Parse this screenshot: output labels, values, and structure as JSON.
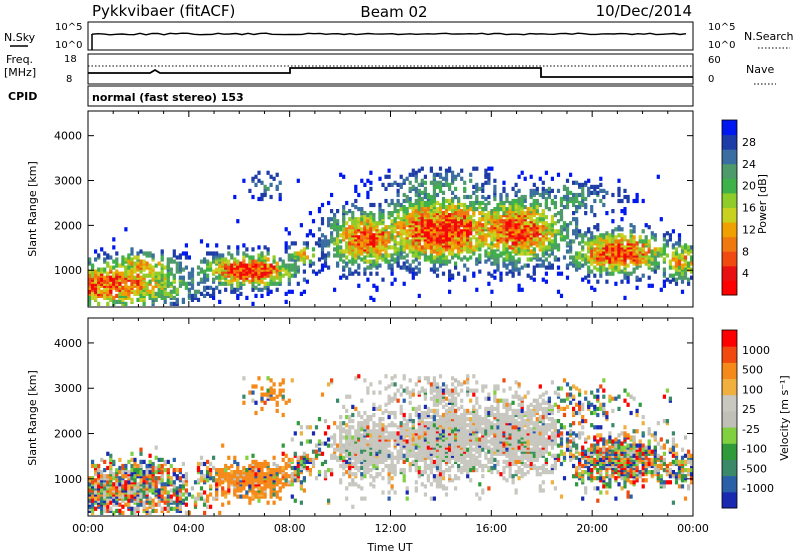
{
  "header": {
    "radar": "Pykkvibaer (fitACF)",
    "beam": "Beam 02",
    "date": "10/Dec/2014"
  },
  "aux_panels": {
    "nsky_label": "N.Sky",
    "nsky_ticks": [
      "10^5",
      "10^0"
    ],
    "nsearch_label": "N.Search",
    "nsearch_ticks": [
      "10^5",
      "10^0"
    ],
    "freq_label": "Freq.",
    "freq_unit": "[MHz]",
    "freq_ticks": [
      "18",
      "8"
    ],
    "nave_label": "Nave",
    "nave_ticks": [
      "60",
      "0"
    ],
    "cpid_label": "CPID",
    "cpid_text": "normal (fast stereo) 153"
  },
  "colors": {
    "power": [
      "#0018f0",
      "#1e3ca8",
      "#3a6ea0",
      "#4e9a6a",
      "#3fb14a",
      "#8fcc2a",
      "#c8d020",
      "#f0a000",
      "#f07810",
      "#f04a10",
      "#e81010",
      "#ff0000"
    ],
    "velocity": [
      "#ff0000",
      "#f04a10",
      "#f58a1a",
      "#f0b040",
      "#c8c8c0",
      "#c0c0b8",
      "#80d040",
      "#2f9a3a",
      "#3a8a6a",
      "#2a60a8",
      "#1a2ab0"
    ]
  },
  "chart_data": [
    {
      "type": "heatmap",
      "name": "power",
      "ylabel": "Slant Range [km]",
      "colorbar_label": "Power [dB]",
      "colorbar_ticks": [
        "28",
        "24",
        "20",
        "16",
        "12",
        "8",
        "4"
      ],
      "colorbar_range": [
        0,
        32
      ],
      "x_ticks": [
        "00:00",
        "04:00",
        "08:00",
        "12:00",
        "16:00",
        "20:00",
        "00:00"
      ],
      "xlim_hours": [
        0,
        24
      ],
      "y_ticks": [
        "4000",
        "3000",
        "2000",
        "1000"
      ],
      "y_tick_values": [
        4000,
        3000,
        2000,
        1000
      ],
      "ylim": [
        180,
        4550
      ]
    },
    {
      "type": "heatmap",
      "name": "velocity",
      "ylabel": "Slant Range [km]",
      "colorbar_label": "Velocity [m s⁻¹]",
      "colorbar_ticks": [
        "1000",
        "500",
        "100",
        "25",
        "-25",
        "-100",
        "-500",
        "-1000"
      ],
      "x_ticks": [
        "00:00",
        "04:00",
        "08:00",
        "12:00",
        "16:00",
        "20:00",
        "00:00"
      ],
      "xlabel": "Time UT",
      "xlim_hours": [
        0,
        24
      ],
      "y_ticks": [
        "4000",
        "3000",
        "2000",
        "1000"
      ],
      "y_tick_values": [
        4000,
        3000,
        2000,
        1000
      ],
      "ylim": [
        180,
        4550
      ]
    }
  ]
}
